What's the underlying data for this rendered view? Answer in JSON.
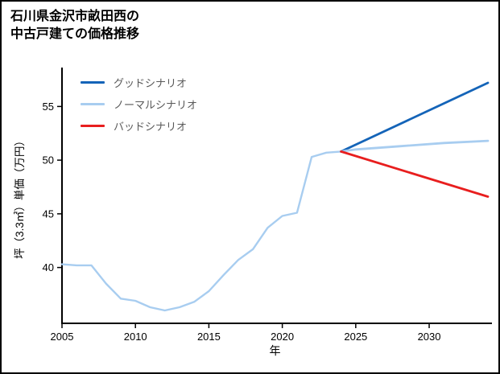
{
  "header": {
    "title_line1": "石川県金沢市畝田西の",
    "title_line2": "中古戸建ての価格推移"
  },
  "chart_data": {
    "type": "line",
    "title": "石川県金沢市畝田西の中古戸建ての価格推移",
    "xlabel": "年",
    "ylabel": "坪（3.3㎡）単価（万円）",
    "xlim": [
      2005,
      2034
    ],
    "ylim": [
      34.8,
      58.4
    ],
    "xticks": [
      2005,
      2010,
      2015,
      2020,
      2025,
      2030
    ],
    "yticks": [
      40,
      45,
      50,
      55
    ],
    "grid": false,
    "legend_position": "upper-left-inside",
    "axis_color": "#000000",
    "tick_label_color": "#000000",
    "legend": [
      {
        "label": "グッドシナリオ",
        "color": "#1464b8"
      },
      {
        "label": "ノーマルシナリオ",
        "color": "#a8cdf0"
      },
      {
        "label": "バッドシナリオ",
        "color": "#e81e1e"
      }
    ],
    "series": [
      {
        "name": "historical",
        "color": "#a8cdf0",
        "width": 2.4,
        "x": [
          2005,
          2006,
          2007,
          2008,
          2009,
          2010,
          2011,
          2012,
          2013,
          2014,
          2015,
          2016,
          2017,
          2018,
          2019,
          2020,
          2021,
          2022,
          2023,
          2024
        ],
        "y": [
          40.3,
          40.2,
          40.2,
          38.5,
          37.1,
          36.9,
          36.3,
          36.0,
          36.3,
          36.8,
          37.8,
          39.3,
          40.7,
          41.7,
          43.7,
          44.8,
          45.1,
          50.3,
          50.7,
          50.8
        ]
      },
      {
        "name": "good-scenario",
        "color": "#1464b8",
        "width": 2.8,
        "x": [
          2024,
          2034
        ],
        "y": [
          50.8,
          57.2
        ]
      },
      {
        "name": "normal-scenario",
        "color": "#a8cdf0",
        "width": 2.8,
        "x": [
          2024,
          2025,
          2028,
          2031,
          2034
        ],
        "y": [
          50.8,
          51.0,
          51.3,
          51.6,
          51.8
        ]
      },
      {
        "name": "bad-scenario",
        "color": "#e81e1e",
        "width": 2.8,
        "x": [
          2024,
          2034
        ],
        "y": [
          50.8,
          46.6
        ]
      }
    ]
  }
}
